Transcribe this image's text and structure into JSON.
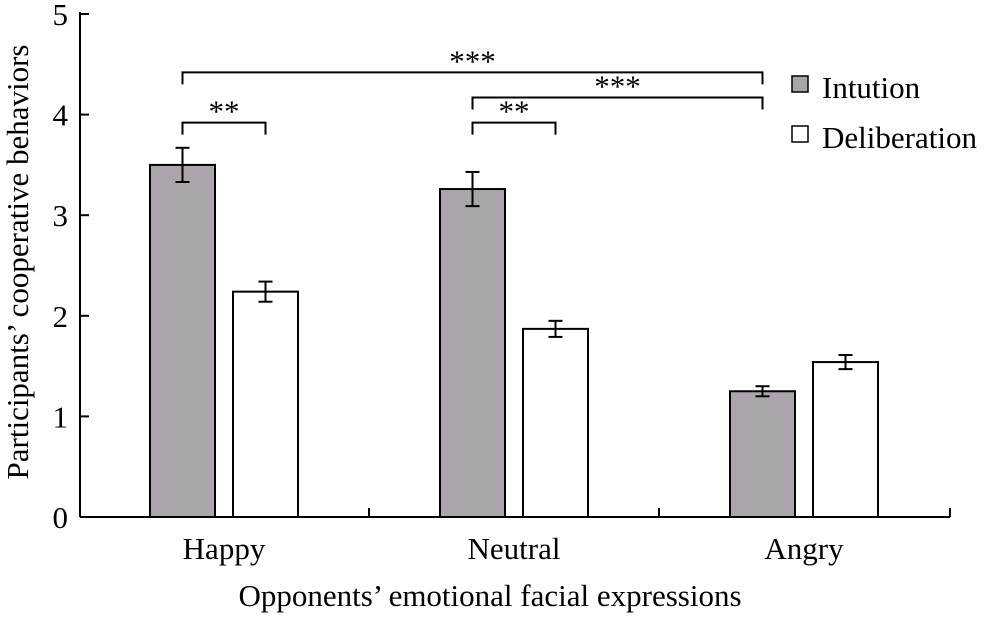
{
  "chart_data": {
    "type": "bar",
    "title": "",
    "xlabel": "Opponents’ emotional facial expressions",
    "ylabel": "Participants’ cooperative behaviors",
    "ylim": [
      0,
      5
    ],
    "yticks": [
      "0",
      "1",
      "2",
      "3",
      "4",
      "5"
    ],
    "categories": [
      "Happy",
      "Neutral",
      "Angry"
    ],
    "series": [
      {
        "name": "Intution",
        "color": "#aaa5aa",
        "values": [
          3.5,
          3.26,
          1.25
        ],
        "errors": [
          0.17,
          0.17,
          0.05
        ]
      },
      {
        "name": "Deliberation",
        "color": "#ffffff",
        "values": [
          2.24,
          1.87,
          1.54
        ],
        "errors": [
          0.1,
          0.08,
          0.07
        ]
      }
    ],
    "legend_position": "top-right",
    "grid": false,
    "significance": [
      {
        "label": "***",
        "from": {
          "category": 0,
          "series": 0
        },
        "to": {
          "category": 2,
          "series": 0
        },
        "level": 4.42
      },
      {
        "label": "***",
        "from": {
          "category": 1,
          "series": 0
        },
        "to": {
          "category": 2,
          "series": 0
        },
        "level": 4.17
      },
      {
        "label": "**",
        "from": {
          "category": 0,
          "series": 0
        },
        "to": {
          "category": 0,
          "series": 1
        },
        "level": 3.92
      },
      {
        "label": "**",
        "from": {
          "category": 1,
          "series": 0
        },
        "to": {
          "category": 1,
          "series": 1
        },
        "level": 3.92
      }
    ]
  }
}
